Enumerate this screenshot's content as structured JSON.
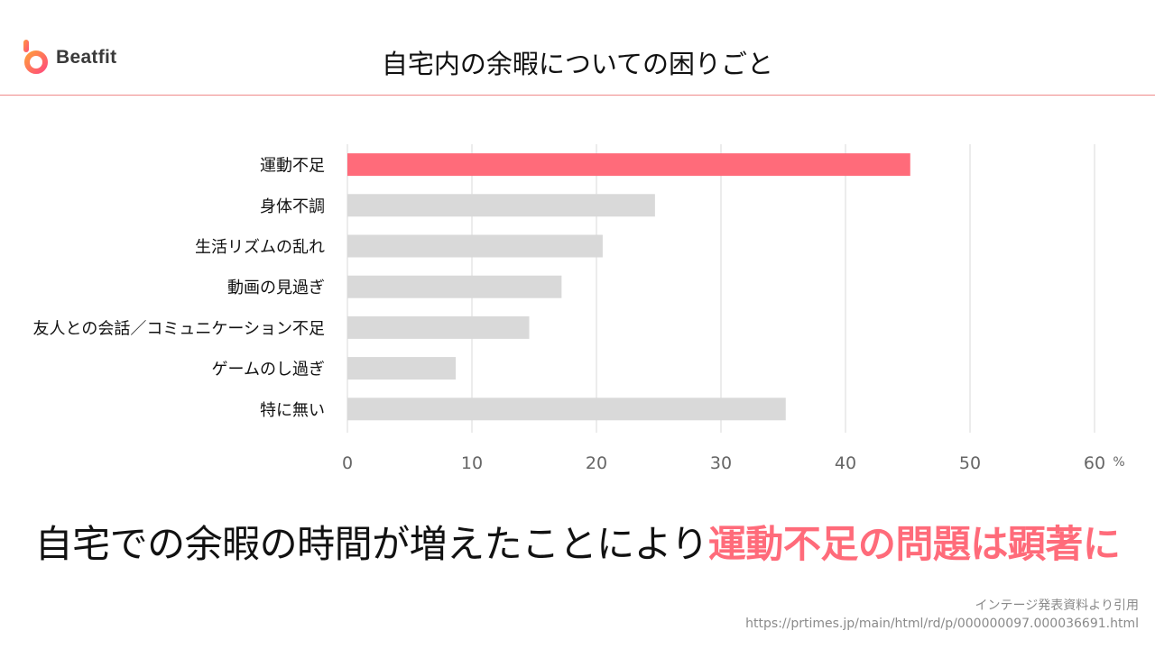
{
  "brand": {
    "name": "Beatfit",
    "accent": "#ff6b7a",
    "logo_gradient": [
      "#ff9a3d",
      "#ff4f7a"
    ]
  },
  "header": {
    "title": "自宅内の余暇についての困りごと"
  },
  "chart_data": {
    "type": "bar",
    "orientation": "horizontal",
    "categories": [
      "運動不足",
      "身体不調",
      "生活リズムの乱れ",
      "動画の見過ぎ",
      "友人との会話／コミュニケーション不足",
      "ゲームのし過ぎ",
      "特に無い"
    ],
    "values": [
      45.2,
      24.7,
      20.5,
      17.2,
      14.6,
      8.7,
      35.2
    ],
    "highlight_index": 0,
    "colors": {
      "highlight": "#ff6b7a",
      "default": "#d9d9d9",
      "grid": "#d9d9d9",
      "axis_text": "#666666",
      "label_text": "#111111"
    },
    "xlim": [
      0,
      60
    ],
    "x_ticks": [
      "0",
      "10",
      "20",
      "30",
      "40",
      "50",
      "60"
    ],
    "unit": "%",
    "grid": true
  },
  "headline": {
    "prefix": "自宅での余暇の時間が増えたことにより",
    "highlight": "運動不足の問題は顕著に"
  },
  "source": {
    "line1": "インテージ発表資料より引用",
    "line2": "https://prtimes.jp/main/html/rd/p/000000097.000036691.html"
  }
}
